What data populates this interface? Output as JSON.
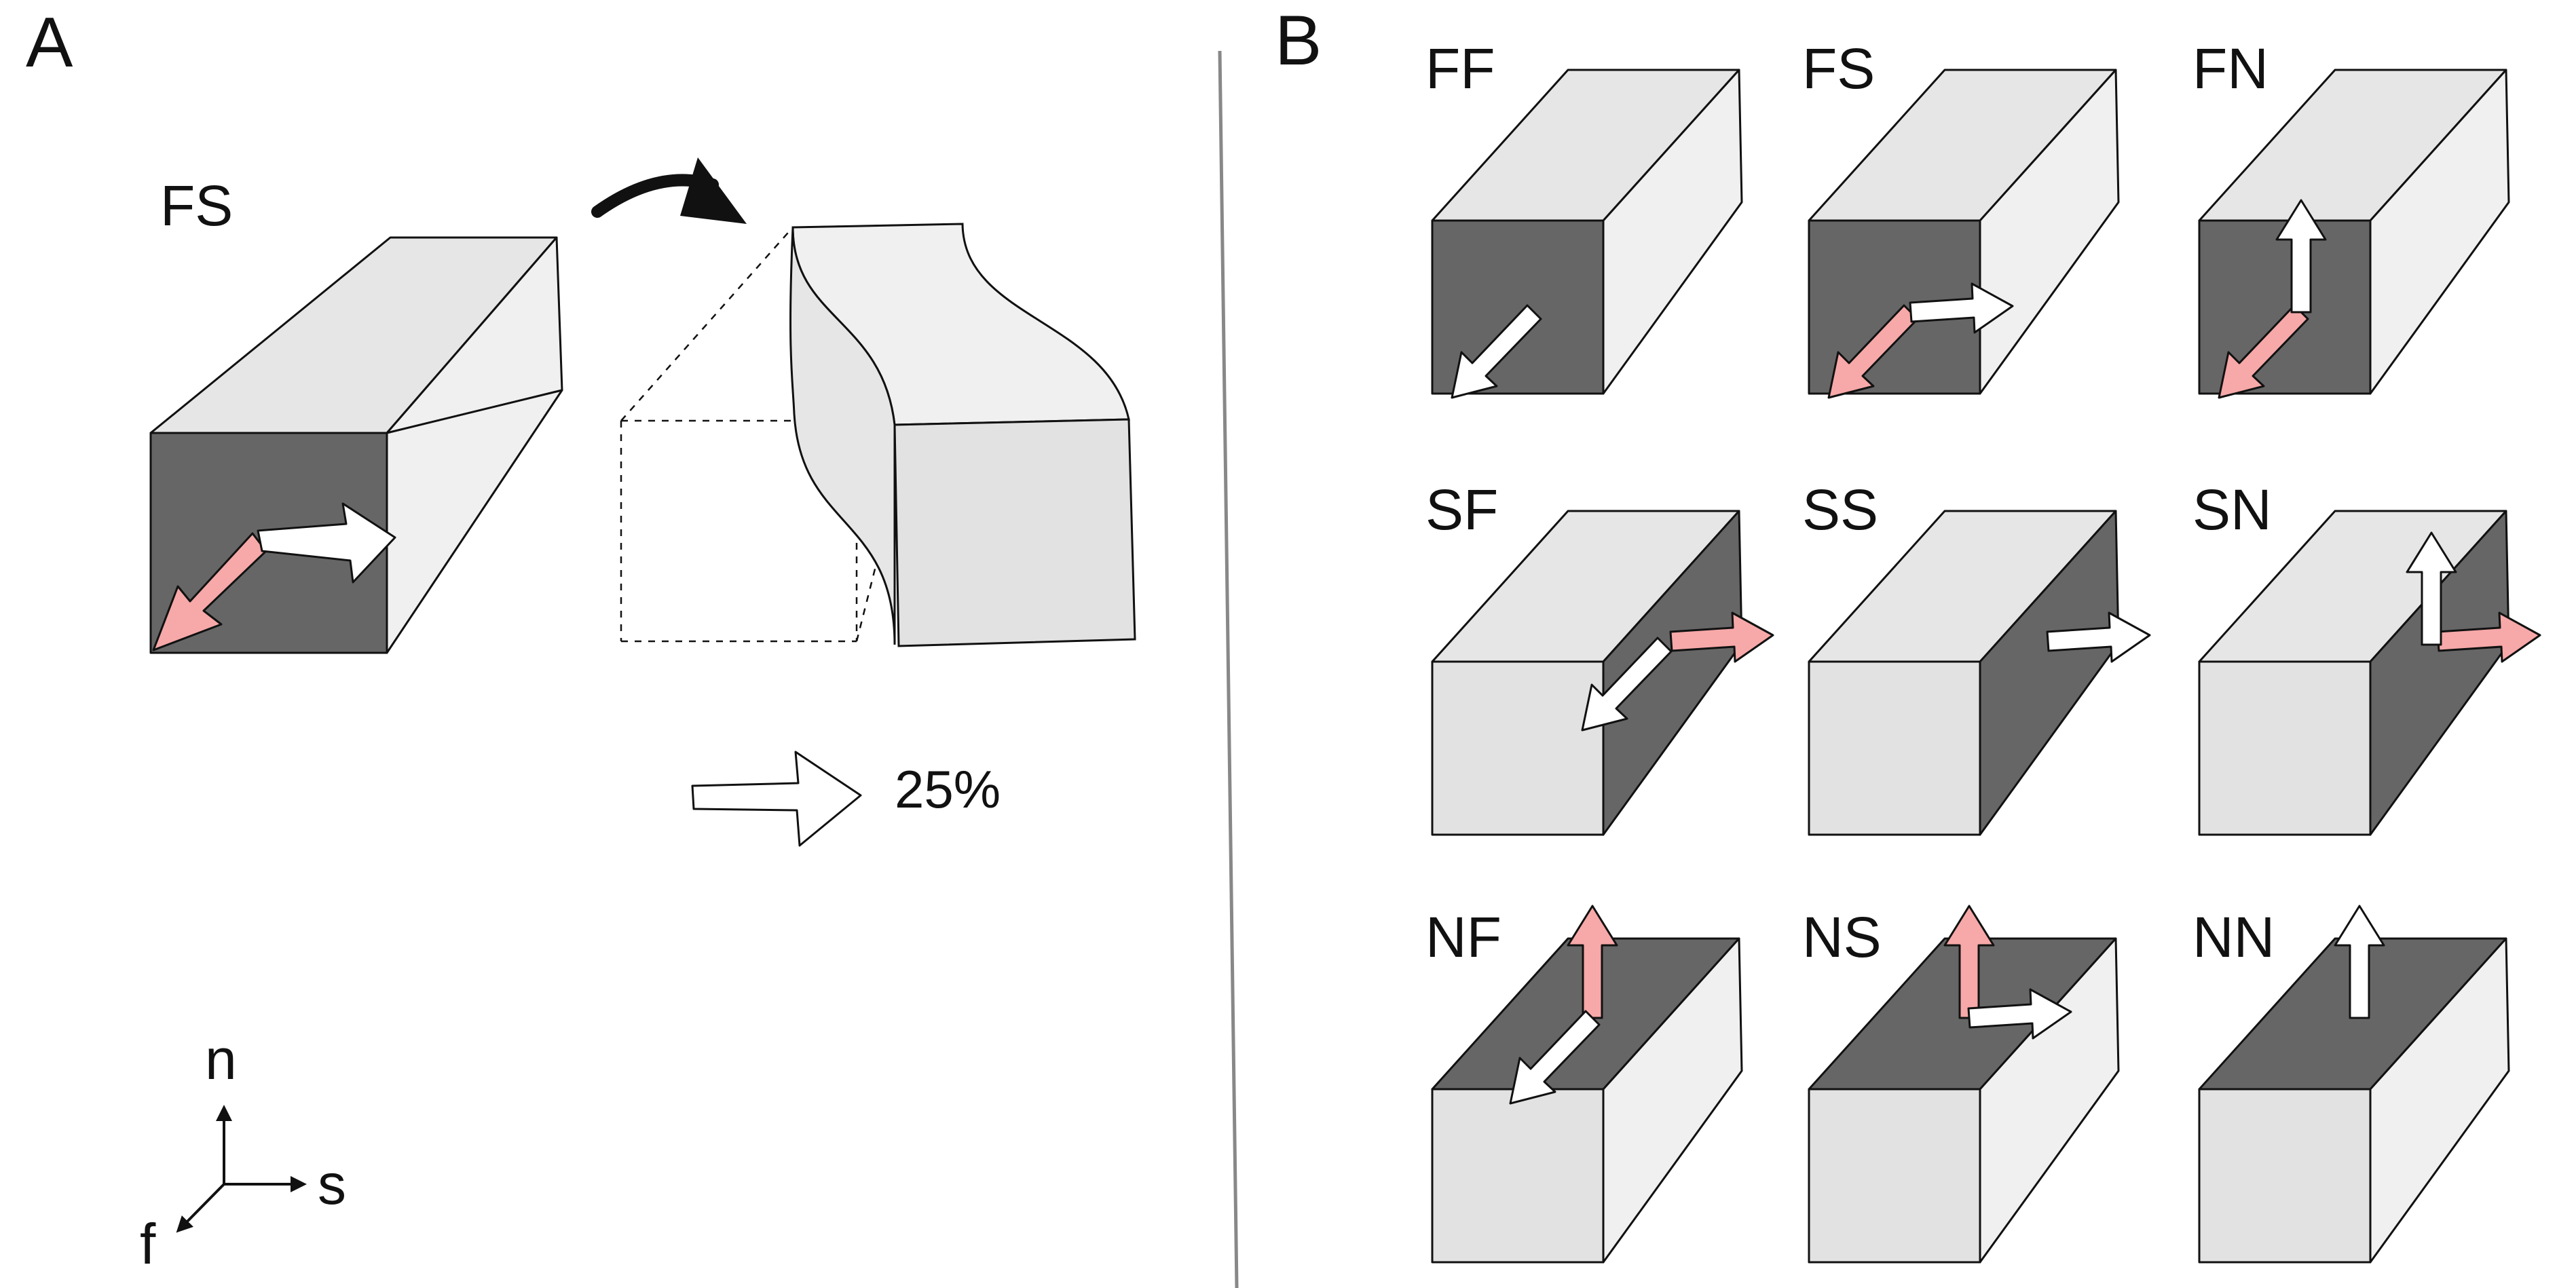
{
  "panelA": {
    "letter": "A",
    "box_label": "FS",
    "strain_label": "25%",
    "axes": {
      "n": "n",
      "s": "s",
      "f": "f"
    }
  },
  "panelB": {
    "letter": "B",
    "boxes": [
      {
        "label": "FF",
        "shaded_face": "front",
        "arrows": [
          {
            "dir": "f",
            "color": "white"
          }
        ]
      },
      {
        "label": "FS",
        "shaded_face": "front",
        "arrows": [
          {
            "dir": "f",
            "color": "pink"
          },
          {
            "dir": "s",
            "color": "white"
          }
        ]
      },
      {
        "label": "FN",
        "shaded_face": "front",
        "arrows": [
          {
            "dir": "f",
            "color": "pink"
          },
          {
            "dir": "n",
            "color": "white"
          }
        ]
      },
      {
        "label": "SF",
        "shaded_face": "side",
        "arrows": [
          {
            "dir": "s",
            "color": "pink"
          },
          {
            "dir": "f",
            "color": "white"
          }
        ]
      },
      {
        "label": "SS",
        "shaded_face": "side",
        "arrows": [
          {
            "dir": "s",
            "color": "white"
          }
        ]
      },
      {
        "label": "SN",
        "shaded_face": "side",
        "arrows": [
          {
            "dir": "s",
            "color": "pink"
          },
          {
            "dir": "n",
            "color": "white"
          }
        ]
      },
      {
        "label": "NF",
        "shaded_face": "top",
        "arrows": [
          {
            "dir": "n",
            "color": "pink"
          },
          {
            "dir": "f",
            "color": "white"
          }
        ]
      },
      {
        "label": "NS",
        "shaded_face": "top",
        "arrows": [
          {
            "dir": "n",
            "color": "pink"
          },
          {
            "dir": "s",
            "color": "white"
          }
        ]
      },
      {
        "label": "NN",
        "shaded_face": "top",
        "arrows": [
          {
            "dir": "n",
            "color": "white"
          }
        ]
      }
    ]
  },
  "colors": {
    "dark_face": "#666666",
    "top_face": "#e6e6e6",
    "side_face": "#f0f0f0",
    "front_face": "#e2e2e2",
    "pink_arrow": "#f7a8a8",
    "white_arrow": "#ffffff",
    "outline": "#111111",
    "divider": "#888888"
  }
}
